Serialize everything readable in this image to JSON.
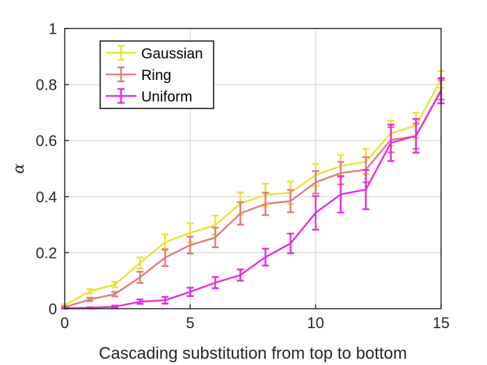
{
  "chart_data": {
    "type": "line",
    "title": "",
    "xlabel": "Cascading substitution from top to bottom",
    "ylabel": "α",
    "xlim": [
      0,
      15
    ],
    "ylim": [
      0,
      1
    ],
    "xticks": [
      0,
      5,
      10,
      15
    ],
    "xtick_labels": [
      "0",
      "5",
      "10",
      "15"
    ],
    "yticks": [
      0,
      0.2,
      0.4,
      0.6,
      0.8,
      1
    ],
    "ytick_labels": [
      "0",
      "0.2",
      "0.4",
      "0.6",
      "0.8",
      "1"
    ],
    "grid": true,
    "legend": "top-left",
    "x": [
      0,
      1,
      2,
      3,
      4,
      5,
      6,
      7,
      8,
      9,
      10,
      11,
      12,
      13,
      14,
      15
    ],
    "series": [
      {
        "name": "Gaussian",
        "color": "#e8e234",
        "values": [
          0.012,
          0.062,
          0.086,
          0.163,
          0.237,
          0.271,
          0.298,
          0.375,
          0.406,
          0.414,
          0.477,
          0.509,
          0.525,
          0.626,
          0.654,
          0.818
        ],
        "errors": [
          0.004,
          0.008,
          0.01,
          0.02,
          0.028,
          0.034,
          0.034,
          0.04,
          0.04,
          0.04,
          0.04,
          0.04,
          0.045,
          0.045,
          0.045,
          0.03
        ]
      },
      {
        "name": "Ring",
        "color": "#e07b7b",
        "values": [
          0.005,
          0.033,
          0.052,
          0.112,
          0.182,
          0.227,
          0.254,
          0.34,
          0.374,
          0.384,
          0.451,
          0.484,
          0.496,
          0.603,
          0.615,
          0.781
        ],
        "errors": [
          0.004,
          0.006,
          0.008,
          0.02,
          0.03,
          0.03,
          0.035,
          0.04,
          0.04,
          0.04,
          0.04,
          0.04,
          0.045,
          0.045,
          0.045,
          0.035
        ]
      },
      {
        "name": "Uniform",
        "color": "#e32ae3",
        "values": [
          0.002,
          0.003,
          0.007,
          0.025,
          0.03,
          0.06,
          0.093,
          0.12,
          0.184,
          0.233,
          0.342,
          0.408,
          0.425,
          0.592,
          0.617,
          0.778
        ],
        "errors": [
          0.002,
          0.002,
          0.004,
          0.008,
          0.012,
          0.015,
          0.02,
          0.02,
          0.03,
          0.035,
          0.06,
          0.065,
          0.07,
          0.065,
          0.06,
          0.045
        ]
      }
    ]
  }
}
